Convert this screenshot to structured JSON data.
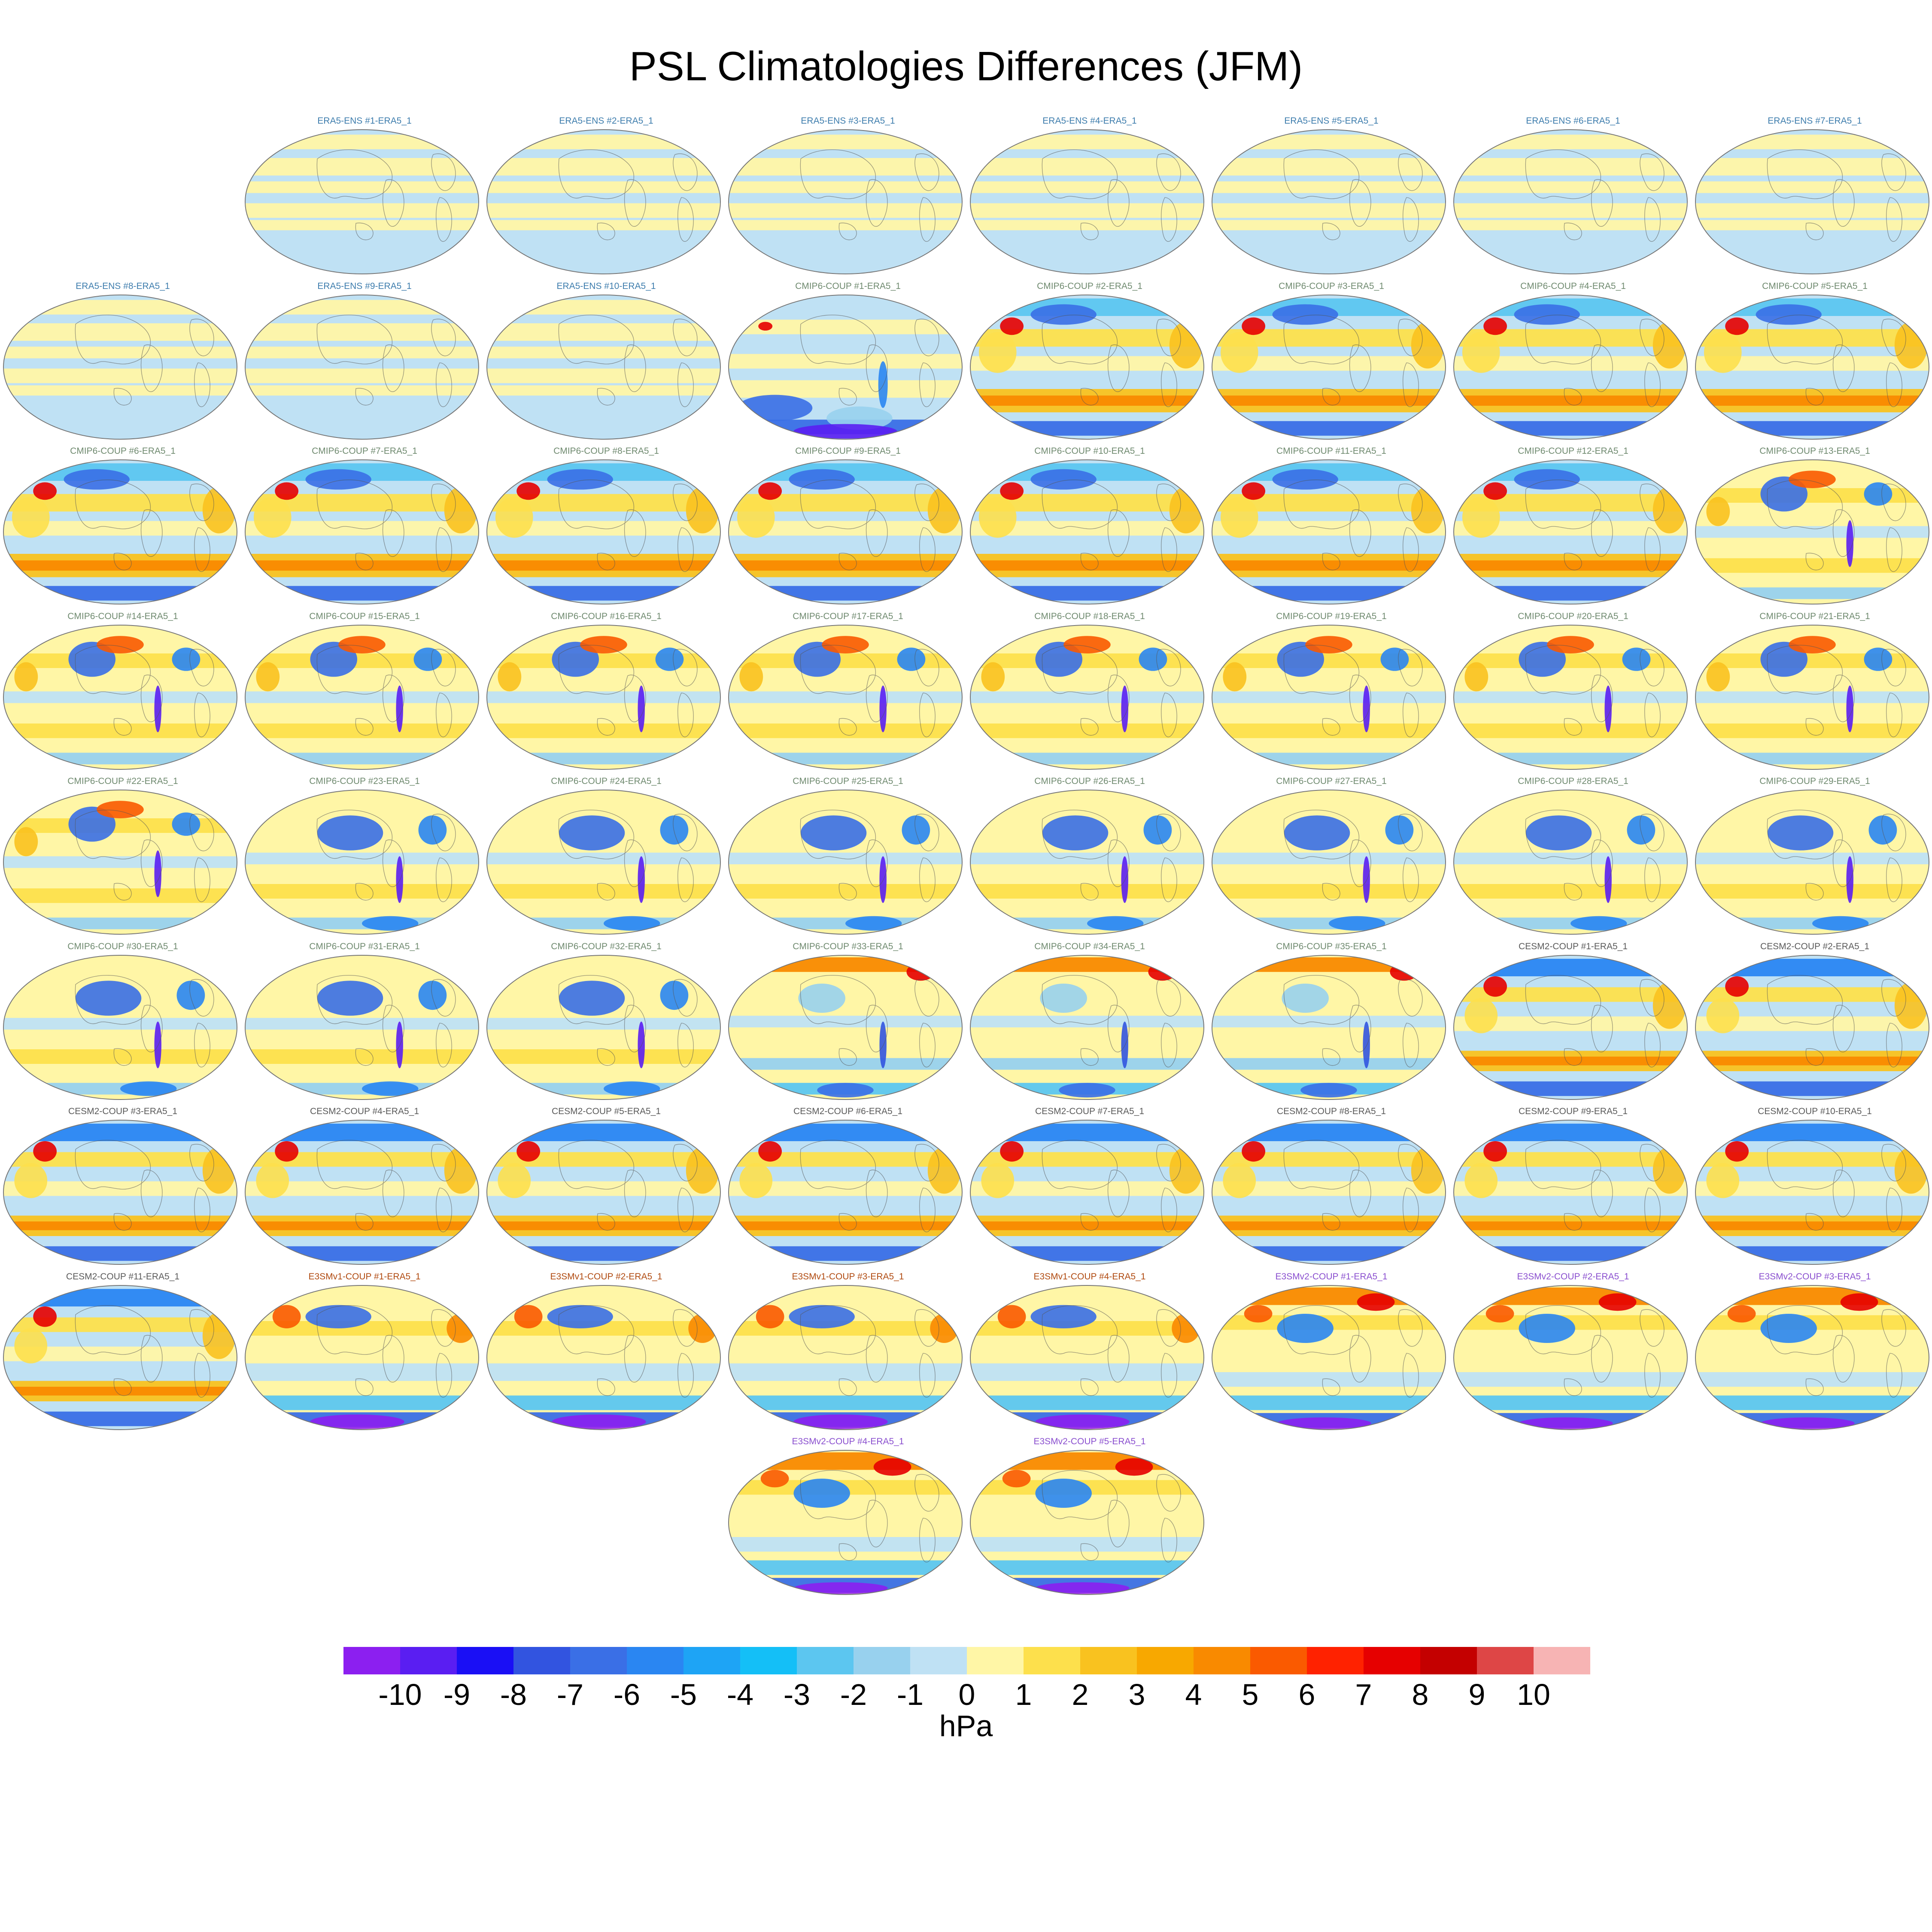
{
  "chart_data": {
    "type": "contour-map-panels",
    "title": "PSL Climatologies Differences (JFM)",
    "variable": "PSL",
    "season": "JFM",
    "units": "hPa",
    "colorbar": {
      "levels": [
        -10,
        -9,
        -8,
        -7,
        -6,
        -5,
        -4,
        -3,
        -2,
        -1,
        0,
        1,
        2,
        3,
        4,
        5,
        6,
        7,
        8,
        9,
        10
      ],
      "colors": [
        "#8c1ff0",
        "#5a1ef2",
        "#1a0ff5",
        "#3254e0",
        "#3a6fe6",
        "#2a86f2",
        "#1ea4f5",
        "#14bff7",
        "#5cc6f0",
        "#98d1ee",
        "#bfe1f4",
        "#fff6a6",
        "#fde04c",
        "#f9c21f",
        "#f8a800",
        "#f98a00",
        "#fa5a00",
        "#ff2200",
        "#e60000",
        "#c40000",
        "#de4646",
        "#f7b4b4"
      ]
    },
    "group_colors": {
      "ERA5-ENS": "#3e7dad",
      "CMIP6-COUP": "#6f8a6f",
      "CESM2-COUP": "#5a5a5a",
      "E3SMv1-COUP": "#b04a10",
      "E3SMv2-COUP": "#8a4fcf"
    },
    "panels": [
      {
        "title": "ERA5-ENS  #1-ERA5_1",
        "group": "ERA5-ENS",
        "pattern": "era5"
      },
      {
        "title": "ERA5-ENS  #2-ERA5_1",
        "group": "ERA5-ENS",
        "pattern": "era5"
      },
      {
        "title": "ERA5-ENS  #3-ERA5_1",
        "group": "ERA5-ENS",
        "pattern": "era5"
      },
      {
        "title": "ERA5-ENS  #4-ERA5_1",
        "group": "ERA5-ENS",
        "pattern": "era5"
      },
      {
        "title": "ERA5-ENS  #5-ERA5_1",
        "group": "ERA5-ENS",
        "pattern": "era5"
      },
      {
        "title": "ERA5-ENS  #6-ERA5_1",
        "group": "ERA5-ENS",
        "pattern": "era5"
      },
      {
        "title": "ERA5-ENS  #7-ERA5_1",
        "group": "ERA5-ENS",
        "pattern": "era5"
      },
      {
        "title": "ERA5-ENS  #8-ERA5_1",
        "group": "ERA5-ENS",
        "pattern": "era5"
      },
      {
        "title": "ERA5-ENS  #9-ERA5_1",
        "group": "ERA5-ENS",
        "pattern": "era5"
      },
      {
        "title": "ERA5-ENS  #10-ERA5_1",
        "group": "ERA5-ENS",
        "pattern": "era5"
      },
      {
        "title": "CMIP6-COUP  #1-ERA5_1",
        "group": "CMIP6-COUP",
        "pattern": "cmipA"
      },
      {
        "title": "CMIP6-COUP  #2-ERA5_1",
        "group": "CMIP6-COUP",
        "pattern": "cmipB"
      },
      {
        "title": "CMIP6-COUP  #3-ERA5_1",
        "group": "CMIP6-COUP",
        "pattern": "cmipB"
      },
      {
        "title": "CMIP6-COUP  #4-ERA5_1",
        "group": "CMIP6-COUP",
        "pattern": "cmipB"
      },
      {
        "title": "CMIP6-COUP  #5-ERA5_1",
        "group": "CMIP6-COUP",
        "pattern": "cmipB"
      },
      {
        "title": "CMIP6-COUP  #6-ERA5_1",
        "group": "CMIP6-COUP",
        "pattern": "cmipB"
      },
      {
        "title": "CMIP6-COUP  #7-ERA5_1",
        "group": "CMIP6-COUP",
        "pattern": "cmipB"
      },
      {
        "title": "CMIP6-COUP  #8-ERA5_1",
        "group": "CMIP6-COUP",
        "pattern": "cmipB"
      },
      {
        "title": "CMIP6-COUP  #9-ERA5_1",
        "group": "CMIP6-COUP",
        "pattern": "cmipB"
      },
      {
        "title": "CMIP6-COUP  #10-ERA5_1",
        "group": "CMIP6-COUP",
        "pattern": "cmipB"
      },
      {
        "title": "CMIP6-COUP  #11-ERA5_1",
        "group": "CMIP6-COUP",
        "pattern": "cmipB"
      },
      {
        "title": "CMIP6-COUP  #12-ERA5_1",
        "group": "CMIP6-COUP",
        "pattern": "cmipB"
      },
      {
        "title": "CMIP6-COUP  #13-ERA5_1",
        "group": "CMIP6-COUP",
        "pattern": "cmipC"
      },
      {
        "title": "CMIP6-COUP  #14-ERA5_1",
        "group": "CMIP6-COUP",
        "pattern": "cmipC"
      },
      {
        "title": "CMIP6-COUP  #15-ERA5_1",
        "group": "CMIP6-COUP",
        "pattern": "cmipC"
      },
      {
        "title": "CMIP6-COUP  #16-ERA5_1",
        "group": "CMIP6-COUP",
        "pattern": "cmipC"
      },
      {
        "title": "CMIP6-COUP  #17-ERA5_1",
        "group": "CMIP6-COUP",
        "pattern": "cmipC"
      },
      {
        "title": "CMIP6-COUP  #18-ERA5_1",
        "group": "CMIP6-COUP",
        "pattern": "cmipC"
      },
      {
        "title": "CMIP6-COUP  #19-ERA5_1",
        "group": "CMIP6-COUP",
        "pattern": "cmipC"
      },
      {
        "title": "CMIP6-COUP  #20-ERA5_1",
        "group": "CMIP6-COUP",
        "pattern": "cmipC"
      },
      {
        "title": "CMIP6-COUP  #21-ERA5_1",
        "group": "CMIP6-COUP",
        "pattern": "cmipC"
      },
      {
        "title": "CMIP6-COUP  #22-ERA5_1",
        "group": "CMIP6-COUP",
        "pattern": "cmipC"
      },
      {
        "title": "CMIP6-COUP  #23-ERA5_1",
        "group": "CMIP6-COUP",
        "pattern": "cmipD"
      },
      {
        "title": "CMIP6-COUP  #24-ERA5_1",
        "group": "CMIP6-COUP",
        "pattern": "cmipD"
      },
      {
        "title": "CMIP6-COUP  #25-ERA5_1",
        "group": "CMIP6-COUP",
        "pattern": "cmipD"
      },
      {
        "title": "CMIP6-COUP  #26-ERA5_1",
        "group": "CMIP6-COUP",
        "pattern": "cmipD"
      },
      {
        "title": "CMIP6-COUP  #27-ERA5_1",
        "group": "CMIP6-COUP",
        "pattern": "cmipD"
      },
      {
        "title": "CMIP6-COUP  #28-ERA5_1",
        "group": "CMIP6-COUP",
        "pattern": "cmipD"
      },
      {
        "title": "CMIP6-COUP  #29-ERA5_1",
        "group": "CMIP6-COUP",
        "pattern": "cmipD"
      },
      {
        "title": "CMIP6-COUP  #30-ERA5_1",
        "group": "CMIP6-COUP",
        "pattern": "cmipD"
      },
      {
        "title": "CMIP6-COUP  #31-ERA5_1",
        "group": "CMIP6-COUP",
        "pattern": "cmipD"
      },
      {
        "title": "CMIP6-COUP  #32-ERA5_1",
        "group": "CMIP6-COUP",
        "pattern": "cmipD"
      },
      {
        "title": "CMIP6-COUP  #33-ERA5_1",
        "group": "CMIP6-COUP",
        "pattern": "cmipE"
      },
      {
        "title": "CMIP6-COUP  #34-ERA5_1",
        "group": "CMIP6-COUP",
        "pattern": "cmipE"
      },
      {
        "title": "CMIP6-COUP  #35-ERA5_1",
        "group": "CMIP6-COUP",
        "pattern": "cmipE"
      },
      {
        "title": "CESM2-COUP  #1-ERA5_1",
        "group": "CESM2-COUP",
        "pattern": "cesm"
      },
      {
        "title": "CESM2-COUP  #2-ERA5_1",
        "group": "CESM2-COUP",
        "pattern": "cesm"
      },
      {
        "title": "CESM2-COUP  #3-ERA5_1",
        "group": "CESM2-COUP",
        "pattern": "cesm"
      },
      {
        "title": "CESM2-COUP  #4-ERA5_1",
        "group": "CESM2-COUP",
        "pattern": "cesm"
      },
      {
        "title": "CESM2-COUP  #5-ERA5_1",
        "group": "CESM2-COUP",
        "pattern": "cesm"
      },
      {
        "title": "CESM2-COUP  #6-ERA5_1",
        "group": "CESM2-COUP",
        "pattern": "cesm"
      },
      {
        "title": "CESM2-COUP  #7-ERA5_1",
        "group": "CESM2-COUP",
        "pattern": "cesm"
      },
      {
        "title": "CESM2-COUP  #8-ERA5_1",
        "group": "CESM2-COUP",
        "pattern": "cesm"
      },
      {
        "title": "CESM2-COUP  #9-ERA5_1",
        "group": "CESM2-COUP",
        "pattern": "cesm"
      },
      {
        "title": "CESM2-COUP  #10-ERA5_1",
        "group": "CESM2-COUP",
        "pattern": "cesm"
      },
      {
        "title": "CESM2-COUP  #11-ERA5_1",
        "group": "CESM2-COUP",
        "pattern": "cesm"
      },
      {
        "title": "E3SMv1-COUP  #1-ERA5_1",
        "group": "E3SMv1-COUP",
        "pattern": "e3v1"
      },
      {
        "title": "E3SMv1-COUP  #2-ERA5_1",
        "group": "E3SMv1-COUP",
        "pattern": "e3v1"
      },
      {
        "title": "E3SMv1-COUP  #3-ERA5_1",
        "group": "E3SMv1-COUP",
        "pattern": "e3v1"
      },
      {
        "title": "E3SMv1-COUP  #4-ERA5_1",
        "group": "E3SMv1-COUP",
        "pattern": "e3v1"
      },
      {
        "title": "E3SMv2-COUP  #1-ERA5_1",
        "group": "E3SMv2-COUP",
        "pattern": "e3v2"
      },
      {
        "title": "E3SMv2-COUP  #2-ERA5_1",
        "group": "E3SMv2-COUP",
        "pattern": "e3v2"
      },
      {
        "title": "E3SMv2-COUP  #3-ERA5_1",
        "group": "E3SMv2-COUP",
        "pattern": "e3v2"
      },
      {
        "title": "E3SMv2-COUP  #4-ERA5_1",
        "group": "E3SMv2-COUP",
        "pattern": "e3v2"
      },
      {
        "title": "E3SMv2-COUP  #5-ERA5_1",
        "group": "E3SMv2-COUP",
        "pattern": "e3v2"
      }
    ],
    "patterns": {
      "era5": {
        "bg": "#bfe1f4",
        "bands": [
          [
            -0.12,
            0.1,
            "#fff6a6"
          ],
          [
            -0.32,
            0.07,
            "#fff6a6"
          ],
          [
            0.2,
            0.08,
            "#fff6a6"
          ],
          [
            0.48,
            0.12,
            "#fff6a6"
          ],
          [
            0.82,
            0.1,
            "#fff6a6"
          ]
        ],
        "blobs": []
      },
      "cmipA": {
        "bg": "#bfe1f4",
        "bands": [
          [
            0.08,
            0.1,
            "#fff6a6"
          ],
          [
            -0.3,
            0.12,
            "#fff6a6"
          ],
          [
            0.55,
            0.1,
            "#fff6a6"
          ],
          [
            -0.82,
            0.1,
            "#3a6fe6"
          ]
        ],
        "blobs": [
          [
            0.2,
            0.78,
            0.16,
            0.09,
            "#3a6fe6"
          ],
          [
            0.56,
            0.85,
            0.14,
            0.08,
            "#98d1ee"
          ],
          [
            0.5,
            0.94,
            0.22,
            0.05,
            "#5a1ef2"
          ],
          [
            0.66,
            0.62,
            0.02,
            0.16,
            "#2a86f2"
          ],
          [
            0.16,
            0.22,
            0.03,
            0.03,
            "#e60000"
          ]
        ]
      },
      "cmipB": {
        "bg": "#bfe1f4",
        "bands": [
          [
            0.82,
            0.12,
            "#5cc6f0"
          ],
          [
            -0.46,
            0.16,
            "#f9c21f"
          ],
          [
            -0.46,
            0.07,
            "#f98a00"
          ],
          [
            0.4,
            0.12,
            "#fde04c"
          ],
          [
            0.05,
            0.1,
            "#fff6a6"
          ],
          [
            -0.84,
            0.1,
            "#3a6fe6"
          ]
        ],
        "blobs": [
          [
            0.12,
            0.4,
            0.08,
            0.14,
            "#fde04c"
          ],
          [
            0.92,
            0.35,
            0.07,
            0.16,
            "#f9c21f"
          ],
          [
            0.18,
            0.22,
            0.05,
            0.06,
            "#e60000"
          ],
          [
            0.4,
            0.14,
            0.14,
            0.07,
            "#3a6fe6"
          ]
        ]
      },
      "cmipC": {
        "bg": "#fff6a6",
        "bands": [
          [
            0.0,
            0.08,
            "#bfe1f4"
          ],
          [
            -0.46,
            0.1,
            "#fde04c"
          ],
          [
            -0.84,
            0.08,
            "#98d1ee"
          ],
          [
            0.5,
            0.1,
            "#fde04c"
          ]
        ],
        "blobs": [
          [
            0.38,
            0.24,
            0.1,
            0.12,
            "#3a6fe6"
          ],
          [
            0.78,
            0.24,
            0.06,
            0.08,
            "#2a86f2"
          ],
          [
            0.5,
            0.14,
            0.1,
            0.06,
            "#fa5a00"
          ],
          [
            0.66,
            0.58,
            0.015,
            0.16,
            "#5a1ef2"
          ],
          [
            0.1,
            0.36,
            0.05,
            0.1,
            "#f9c21f"
          ]
        ]
      },
      "cmipD": {
        "bg": "#fff6a6",
        "bands": [
          [
            0.05,
            0.08,
            "#bfe1f4"
          ],
          [
            -0.4,
            0.1,
            "#fde04c"
          ],
          [
            -0.84,
            0.08,
            "#98d1ee"
          ]
        ],
        "blobs": [
          [
            0.45,
            0.3,
            0.14,
            0.12,
            "#3a6fe6"
          ],
          [
            0.8,
            0.28,
            0.06,
            0.1,
            "#2a86f2"
          ],
          [
            0.66,
            0.62,
            0.015,
            0.16,
            "#5a1ef2"
          ],
          [
            0.62,
            0.92,
            0.12,
            0.05,
            "#2a86f2"
          ]
        ]
      },
      "cmipE": {
        "bg": "#fff6a6",
        "bands": [
          [
            0.86,
            0.1,
            "#f98a00"
          ],
          [
            0.08,
            0.08,
            "#bfe1f4"
          ],
          [
            -0.5,
            0.08,
            "#98d1ee"
          ],
          [
            -0.84,
            0.08,
            "#5cc6f0"
          ]
        ],
        "blobs": [
          [
            0.4,
            0.3,
            0.1,
            0.1,
            "#98d1ee"
          ],
          [
            0.82,
            0.12,
            0.06,
            0.06,
            "#e60000"
          ],
          [
            0.66,
            0.62,
            0.015,
            0.16,
            "#3254e0"
          ],
          [
            0.5,
            0.93,
            0.12,
            0.05,
            "#3a6fe6"
          ]
        ]
      },
      "cesm": {
        "bg": "#bfe1f4",
        "bands": [
          [
            0.82,
            0.12,
            "#2a86f2"
          ],
          [
            -0.46,
            0.14,
            "#f9c21f"
          ],
          [
            -0.46,
            0.06,
            "#f98a00"
          ],
          [
            0.45,
            0.1,
            "#fde04c"
          ],
          [
            0.05,
            0.1,
            "#fff6a6"
          ],
          [
            -0.84,
            0.1,
            "#3a6fe6"
          ]
        ],
        "blobs": [
          [
            0.18,
            0.22,
            0.05,
            0.07,
            "#e60000"
          ],
          [
            0.92,
            0.35,
            0.07,
            0.16,
            "#f9c21f"
          ],
          [
            0.12,
            0.42,
            0.07,
            0.12,
            "#fde04c"
          ]
        ]
      },
      "e3v1": {
        "bg": "#fff6a6",
        "bands": [
          [
            0.4,
            0.1,
            "#fde04c"
          ],
          [
            -0.2,
            0.12,
            "#bfe1f4"
          ],
          [
            -0.62,
            0.1,
            "#5cc6f0"
          ],
          [
            -0.85,
            0.1,
            "#3a6fe6"
          ]
        ],
        "blobs": [
          [
            0.4,
            0.22,
            0.14,
            0.08,
            "#3a6fe6"
          ],
          [
            0.18,
            0.22,
            0.06,
            0.08,
            "#fa5a00"
          ],
          [
            0.92,
            0.3,
            0.06,
            0.1,
            "#f98a00"
          ],
          [
            0.48,
            0.94,
            0.2,
            0.05,
            "#8c1ff0"
          ]
        ]
      },
      "e3v2": {
        "bg": "#fff6a6",
        "bands": [
          [
            0.84,
            0.12,
            "#f98a00"
          ],
          [
            0.48,
            0.1,
            "#fde04c"
          ],
          [
            -0.3,
            0.1,
            "#bfe1f4"
          ],
          [
            -0.62,
            0.1,
            "#5cc6f0"
          ],
          [
            -0.86,
            0.1,
            "#3a6fe6"
          ]
        ],
        "blobs": [
          [
            0.4,
            0.3,
            0.12,
            0.1,
            "#2a86f2"
          ],
          [
            0.7,
            0.12,
            0.08,
            0.06,
            "#e60000"
          ],
          [
            0.2,
            0.2,
            0.06,
            0.06,
            "#fa5a00"
          ],
          [
            0.48,
            0.95,
            0.2,
            0.04,
            "#8c1ff0"
          ]
        ]
      }
    }
  }
}
